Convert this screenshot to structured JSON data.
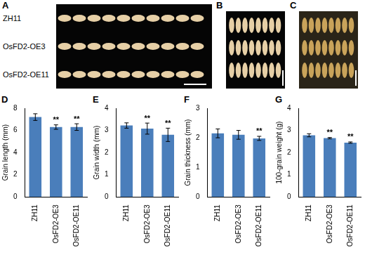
{
  "photo_panels": [
    {
      "panel": "A",
      "rows": [
        "ZH11",
        "OsFD2-OE3",
        "OsFD2-OE11"
      ]
    },
    {
      "panel": "B"
    },
    {
      "panel": "C"
    }
  ],
  "chart_data": [
    {
      "panel": "D",
      "type": "bar",
      "y_label": "Grain length (mm)",
      "categories": [
        "ZH11",
        "OsFD2-OE3",
        "OsFD2-OE11"
      ],
      "values": [
        7.2,
        6.3,
        6.3
      ],
      "errors": [
        0.3,
        0.2,
        0.3
      ],
      "annotations": [
        null,
        "**",
        "**"
      ],
      "color": "#4a7ebb",
      "ylim": [
        0,
        8
      ],
      "yticks": [
        0,
        2,
        4,
        6,
        8
      ],
      "grid": false
    },
    {
      "panel": "E",
      "type": "bar",
      "y_label": "Grain width (mm)",
      "categories": [
        "ZH11",
        "OsFD2-OE3",
        "OsFD2-OE11"
      ],
      "values": [
        3.22,
        3.08,
        2.8
      ],
      "errors": [
        0.12,
        0.25,
        0.3
      ],
      "annotations": [
        null,
        "**",
        "**"
      ],
      "color": "#4a7ebb",
      "ylim": [
        0,
        4
      ],
      "yticks": [
        0,
        1,
        2,
        3,
        4
      ],
      "grid": false
    },
    {
      "panel": "F",
      "type": "bar",
      "y_label": "Grain thickness (mm)",
      "categories": [
        "ZH11",
        "OsFD2-OE3",
        "OsFD2-OE11"
      ],
      "values": [
        2.15,
        2.1,
        1.98
      ],
      "errors": [
        0.15,
        0.15,
        0.07
      ],
      "annotations": [
        null,
        null,
        "**"
      ],
      "color": "#4a7ebb",
      "ylim": [
        0,
        3
      ],
      "yticks": [
        0,
        1,
        2,
        3
      ],
      "grid": false
    },
    {
      "panel": "G",
      "type": "bar",
      "y_label": "100-grain weight (g)",
      "categories": [
        "ZH11",
        "OsFD2-OE3",
        "OsFD2-OE11"
      ],
      "values": [
        2.78,
        2.65,
        2.45
      ],
      "errors": [
        0.07,
        0.03,
        0.03
      ],
      "annotations": [
        null,
        "**",
        "**"
      ],
      "color": "#4a7ebb",
      "ylim": [
        0,
        4
      ],
      "yticks": [
        0,
        1,
        2,
        3,
        4
      ],
      "grid": false
    }
  ]
}
